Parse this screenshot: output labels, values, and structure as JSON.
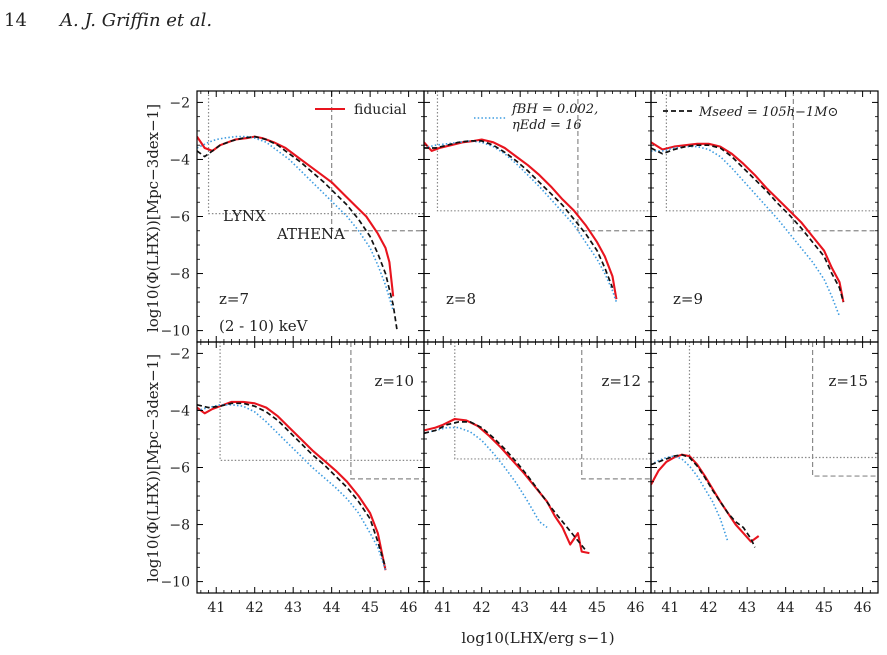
{
  "header": {
    "page_number": "14",
    "authors": "A. J. Griffin et al."
  },
  "colors": {
    "fiducial": "#e8141e",
    "fbh": "#3c9be0",
    "mseed": "#111111",
    "limit_lines": "#8a8a8a"
  },
  "chart_data": {
    "type": "line",
    "xlabel": "log10(LHX/erg s−1)",
    "ylabel": "log10(Φ(LHX))[Mpc−3dex−1]",
    "xlim": [
      40.5,
      46.4
    ],
    "ylim": [
      -10.4,
      -1.6
    ],
    "xticks": [
      41,
      42,
      43,
      44,
      45,
      46
    ],
    "yticks": [
      -2,
      -4,
      -6,
      -8,
      -10
    ],
    "grid": false,
    "legend": [
      {
        "key": "fiducial",
        "label": "fiducial",
        "style": "solid"
      },
      {
        "key": "fbh",
        "label_line1": "fBH = 0.002,",
        "label_line2": "ηEdd = 16",
        "style": "dotted"
      },
      {
        "key": "mseed",
        "label": "Mseed = 105h−1M⊙",
        "style": "dashed"
      }
    ],
    "survey_labels": {
      "lynx": "LYNX",
      "athena": "ATHENA"
    },
    "panels": [
      {
        "z_label": "z=7",
        "band_label": "(2 - 10) keV",
        "label_pos": "bottom-left",
        "lynx": {
          "x": 40.8,
          "y": -5.9
        },
        "athena": {
          "x": 44.0,
          "y": -6.5
        },
        "series": [
          {
            "key": "fiducial",
            "x": [
              40.5,
              40.7,
              40.9,
              41.1,
              41.3,
              41.5,
              41.8,
              42.0,
              42.2,
              42.5,
              42.8,
              43.1,
              43.4,
              43.7,
              44.0,
              44.3,
              44.6,
              44.9,
              45.2,
              45.4,
              45.5,
              45.6
            ],
            "y": [
              -3.2,
              -3.6,
              -3.7,
              -3.5,
              -3.4,
              -3.3,
              -3.25,
              -3.2,
              -3.25,
              -3.4,
              -3.6,
              -3.9,
              -4.2,
              -4.5,
              -4.8,
              -5.2,
              -5.6,
              -6.0,
              -6.6,
              -7.1,
              -7.6,
              -8.8
            ]
          },
          {
            "key": "fbh",
            "x": [
              40.5,
              40.8,
              41.0,
              41.2,
              41.5,
              41.8,
              42.0,
              42.3,
              42.6,
              42.9,
              43.2,
              43.5,
              43.8,
              44.1,
              44.4,
              44.7,
              45.0,
              45.2,
              45.4,
              45.6
            ],
            "y": [
              -3.6,
              -3.4,
              -3.3,
              -3.25,
              -3.2,
              -3.2,
              -3.25,
              -3.4,
              -3.7,
              -4.0,
              -4.4,
              -4.8,
              -5.2,
              -5.6,
              -6.0,
              -6.5,
              -7.1,
              -7.7,
              -8.4,
              -9.3
            ]
          },
          {
            "key": "mseed",
            "x": [
              40.5,
              40.7,
              40.9,
              41.1,
              41.4,
              41.7,
              42.0,
              42.3,
              42.6,
              42.9,
              43.2,
              43.5,
              43.8,
              44.1,
              44.4,
              44.7,
              45.0,
              45.2,
              45.4,
              45.6,
              45.7
            ],
            "y": [
              -3.7,
              -3.9,
              -3.7,
              -3.5,
              -3.35,
              -3.25,
              -3.2,
              -3.3,
              -3.5,
              -3.8,
              -4.1,
              -4.45,
              -4.8,
              -5.2,
              -5.6,
              -6.1,
              -6.7,
              -7.3,
              -8.0,
              -9.1,
              -10.0
            ]
          }
        ]
      },
      {
        "z_label": "z=8",
        "band_label": "",
        "label_pos": "bottom-left",
        "lynx": {
          "x": 40.85,
          "y": -5.8
        },
        "athena": {
          "x": 44.5,
          "y": -6.5
        },
        "series": [
          {
            "key": "fiducial",
            "x": [
              40.5,
              40.7,
              40.9,
              41.2,
              41.5,
              41.8,
              42.0,
              42.3,
              42.6,
              42.9,
              43.2,
              43.5,
              43.8,
              44.1,
              44.4,
              44.7,
              45.0,
              45.2,
              45.4,
              45.5
            ],
            "y": [
              -3.4,
              -3.7,
              -3.6,
              -3.5,
              -3.4,
              -3.35,
              -3.3,
              -3.4,
              -3.6,
              -3.9,
              -4.2,
              -4.55,
              -4.95,
              -5.4,
              -5.8,
              -6.3,
              -6.9,
              -7.4,
              -8.1,
              -8.9
            ]
          },
          {
            "key": "fbh",
            "x": [
              40.5,
              40.8,
              41.1,
              41.4,
              41.7,
              42.0,
              42.3,
              42.6,
              42.9,
              43.2,
              43.5,
              43.8,
              44.1,
              44.4,
              44.7,
              45.0,
              45.2,
              45.4,
              45.5
            ],
            "y": [
              -3.6,
              -3.5,
              -3.45,
              -3.4,
              -3.35,
              -3.4,
              -3.55,
              -3.8,
              -4.15,
              -4.55,
              -4.95,
              -5.4,
              -5.85,
              -6.3,
              -6.9,
              -7.5,
              -8.0,
              -8.6,
              -9.0
            ]
          },
          {
            "key": "mseed",
            "x": [
              40.5,
              40.8,
              41.1,
              41.4,
              41.7,
              42.0,
              42.3,
              42.6,
              42.9,
              43.2,
              43.5,
              43.8,
              44.1,
              44.4,
              44.7,
              45.0,
              45.2,
              45.4
            ],
            "y": [
              -3.6,
              -3.6,
              -3.5,
              -3.4,
              -3.35,
              -3.35,
              -3.5,
              -3.75,
              -4.05,
              -4.4,
              -4.8,
              -5.2,
              -5.6,
              -6.1,
              -6.6,
              -7.2,
              -7.8,
              -8.5
            ]
          }
        ]
      },
      {
        "z_label": "z=9",
        "band_label": "",
        "label_pos": "bottom-left",
        "lynx": {
          "x": 40.9,
          "y": -5.8
        },
        "athena": {
          "x": 44.2,
          "y": -6.5
        },
        "series": [
          {
            "key": "fiducial",
            "x": [
              40.5,
              40.8,
              41.1,
              41.4,
              41.7,
              42.0,
              42.3,
              42.6,
              42.9,
              43.2,
              43.5,
              43.8,
              44.1,
              44.4,
              44.7,
              45.0,
              45.2,
              45.4,
              45.5
            ],
            "y": [
              -3.4,
              -3.65,
              -3.55,
              -3.5,
              -3.45,
              -3.45,
              -3.55,
              -3.8,
              -4.15,
              -4.55,
              -5.0,
              -5.4,
              -5.8,
              -6.2,
              -6.7,
              -7.2,
              -7.8,
              -8.3,
              -9.0
            ]
          },
          {
            "key": "fbh",
            "x": [
              40.5,
              40.8,
              41.1,
              41.4,
              41.7,
              42.0,
              42.3,
              42.6,
              42.9,
              43.2,
              43.5,
              43.8,
              44.1,
              44.4,
              44.7,
              45.0,
              45.2,
              45.4
            ],
            "y": [
              -3.7,
              -3.7,
              -3.6,
              -3.55,
              -3.55,
              -3.65,
              -3.9,
              -4.3,
              -4.75,
              -5.2,
              -5.65,
              -6.1,
              -6.6,
              -7.1,
              -7.6,
              -8.2,
              -8.8,
              -9.5
            ]
          },
          {
            "key": "mseed",
            "x": [
              40.5,
              40.8,
              41.1,
              41.4,
              41.7,
              42.0,
              42.3,
              42.6,
              42.9,
              43.2,
              43.5,
              43.8,
              44.1,
              44.4,
              44.7,
              45.0,
              45.2,
              45.4,
              45.5
            ],
            "y": [
              -3.6,
              -3.8,
              -3.65,
              -3.55,
              -3.5,
              -3.5,
              -3.6,
              -3.9,
              -4.3,
              -4.7,
              -5.1,
              -5.55,
              -5.95,
              -6.4,
              -6.9,
              -7.4,
              -8.0,
              -8.5,
              -9.0
            ]
          }
        ]
      },
      {
        "z_label": "z=10",
        "band_label": "",
        "label_pos": "top-right",
        "lynx": {
          "x": 41.1,
          "y": -5.75
        },
        "athena": {
          "x": 44.5,
          "y": -6.4
        },
        "series": [
          {
            "key": "fiducial",
            "x": [
              40.5,
              40.7,
              40.9,
              41.1,
              41.4,
              41.7,
              42.0,
              42.3,
              42.6,
              42.9,
              43.2,
              43.5,
              43.8,
              44.1,
              44.4,
              44.7,
              45.0,
              45.2,
              45.4
            ],
            "y": [
              -3.9,
              -4.1,
              -3.95,
              -3.85,
              -3.7,
              -3.7,
              -3.75,
              -3.9,
              -4.2,
              -4.6,
              -5.0,
              -5.4,
              -5.75,
              -6.1,
              -6.5,
              -7.0,
              -7.6,
              -8.3,
              -9.6
            ]
          },
          {
            "key": "fbh",
            "x": [
              40.5,
              40.8,
              41.1,
              41.4,
              41.7,
              42.0,
              42.3,
              42.6,
              42.9,
              43.2,
              43.5,
              43.8,
              44.1,
              44.4,
              44.7,
              45.0,
              45.2,
              45.4
            ],
            "y": [
              -4.0,
              -3.9,
              -3.8,
              -3.8,
              -3.85,
              -4.05,
              -4.4,
              -4.8,
              -5.2,
              -5.6,
              -6.0,
              -6.35,
              -6.7,
              -7.1,
              -7.6,
              -8.3,
              -8.8,
              -9.6
            ]
          },
          {
            "key": "mseed",
            "x": [
              40.5,
              40.8,
              41.1,
              41.4,
              41.7,
              42.0,
              42.3,
              42.6,
              42.9,
              43.2,
              43.5,
              43.8,
              44.1,
              44.4,
              44.7,
              45.0,
              45.2,
              45.4
            ],
            "y": [
              -3.8,
              -3.9,
              -3.85,
              -3.75,
              -3.75,
              -3.85,
              -4.05,
              -4.35,
              -4.75,
              -5.15,
              -5.55,
              -5.9,
              -6.3,
              -6.7,
              -7.2,
              -7.8,
              -8.6,
              -9.5
            ]
          }
        ]
      },
      {
        "z_label": "z=12",
        "band_label": "",
        "label_pos": "top-right",
        "lynx": {
          "x": 41.3,
          "y": -5.7
        },
        "athena": {
          "x": 44.6,
          "y": -6.4
        },
        "series": [
          {
            "key": "fiducial",
            "x": [
              40.5,
              40.8,
              41.0,
              41.3,
              41.6,
              41.9,
              42.2,
              42.5,
              42.8,
              43.1,
              43.4,
              43.7,
              43.9,
              44.1,
              44.3,
              44.5,
              44.6,
              44.8
            ],
            "y": [
              -4.7,
              -4.6,
              -4.5,
              -4.3,
              -4.35,
              -4.55,
              -4.9,
              -5.3,
              -5.75,
              -6.2,
              -6.7,
              -7.2,
              -7.7,
              -8.1,
              -8.7,
              -8.3,
              -8.95,
              -9.0
            ]
          },
          {
            "key": "fbh",
            "x": [
              40.5,
              40.8,
              41.1,
              41.4,
              41.7,
              42.0,
              42.3,
              42.6,
              42.9,
              43.2,
              43.5,
              43.7
            ],
            "y": [
              -4.8,
              -4.7,
              -4.6,
              -4.6,
              -4.75,
              -5.05,
              -5.5,
              -6.0,
              -6.55,
              -7.2,
              -7.9,
              -8.1
            ]
          },
          {
            "key": "mseed",
            "x": [
              40.5,
              40.8,
              41.1,
              41.4,
              41.7,
              42.0,
              42.3,
              42.6,
              42.9,
              43.2,
              43.5,
              43.8,
              44.1,
              44.4,
              44.7
            ],
            "y": [
              -4.8,
              -4.7,
              -4.5,
              -4.4,
              -4.4,
              -4.6,
              -4.95,
              -5.35,
              -5.8,
              -6.3,
              -6.85,
              -7.4,
              -7.9,
              -8.4,
              -8.9
            ]
          }
        ]
      },
      {
        "z_label": "z=15",
        "band_label": "",
        "label_pos": "top-right",
        "lynx": {
          "x": 41.5,
          "y": -5.65
        },
        "athena": {
          "x": 44.7,
          "y": -6.3
        },
        "series": [
          {
            "key": "fiducial",
            "x": [
              40.5,
              40.7,
              40.9,
              41.1,
              41.3,
              41.5,
              41.7,
              41.9,
              42.1,
              42.3,
              42.5,
              42.7,
              42.9,
              43.1,
              43.3
            ],
            "y": [
              -6.6,
              -6.1,
              -5.8,
              -5.65,
              -5.55,
              -5.6,
              -5.9,
              -6.3,
              -6.75,
              -7.2,
              -7.6,
              -8.0,
              -8.3,
              -8.6,
              -8.4
            ]
          },
          {
            "key": "fbh",
            "x": [
              40.5,
              40.7,
              40.9,
              41.1,
              41.3,
              41.5,
              41.7,
              41.9,
              42.1,
              42.3,
              42.5
            ],
            "y": [
              -5.9,
              -5.75,
              -5.65,
              -5.6,
              -5.7,
              -5.95,
              -6.3,
              -6.75,
              -7.2,
              -7.8,
              -8.6
            ]
          },
          {
            "key": "mseed",
            "x": [
              40.5,
              40.7,
              40.9,
              41.1,
              41.3,
              41.5,
              41.7,
              41.9,
              42.1,
              42.3,
              42.5,
              42.7,
              42.9,
              43.1,
              43.2
            ],
            "y": [
              -5.9,
              -5.8,
              -5.7,
              -5.6,
              -5.55,
              -5.65,
              -5.95,
              -6.35,
              -6.8,
              -7.2,
              -7.6,
              -7.9,
              -8.1,
              -8.5,
              -8.8
            ]
          }
        ]
      }
    ]
  }
}
